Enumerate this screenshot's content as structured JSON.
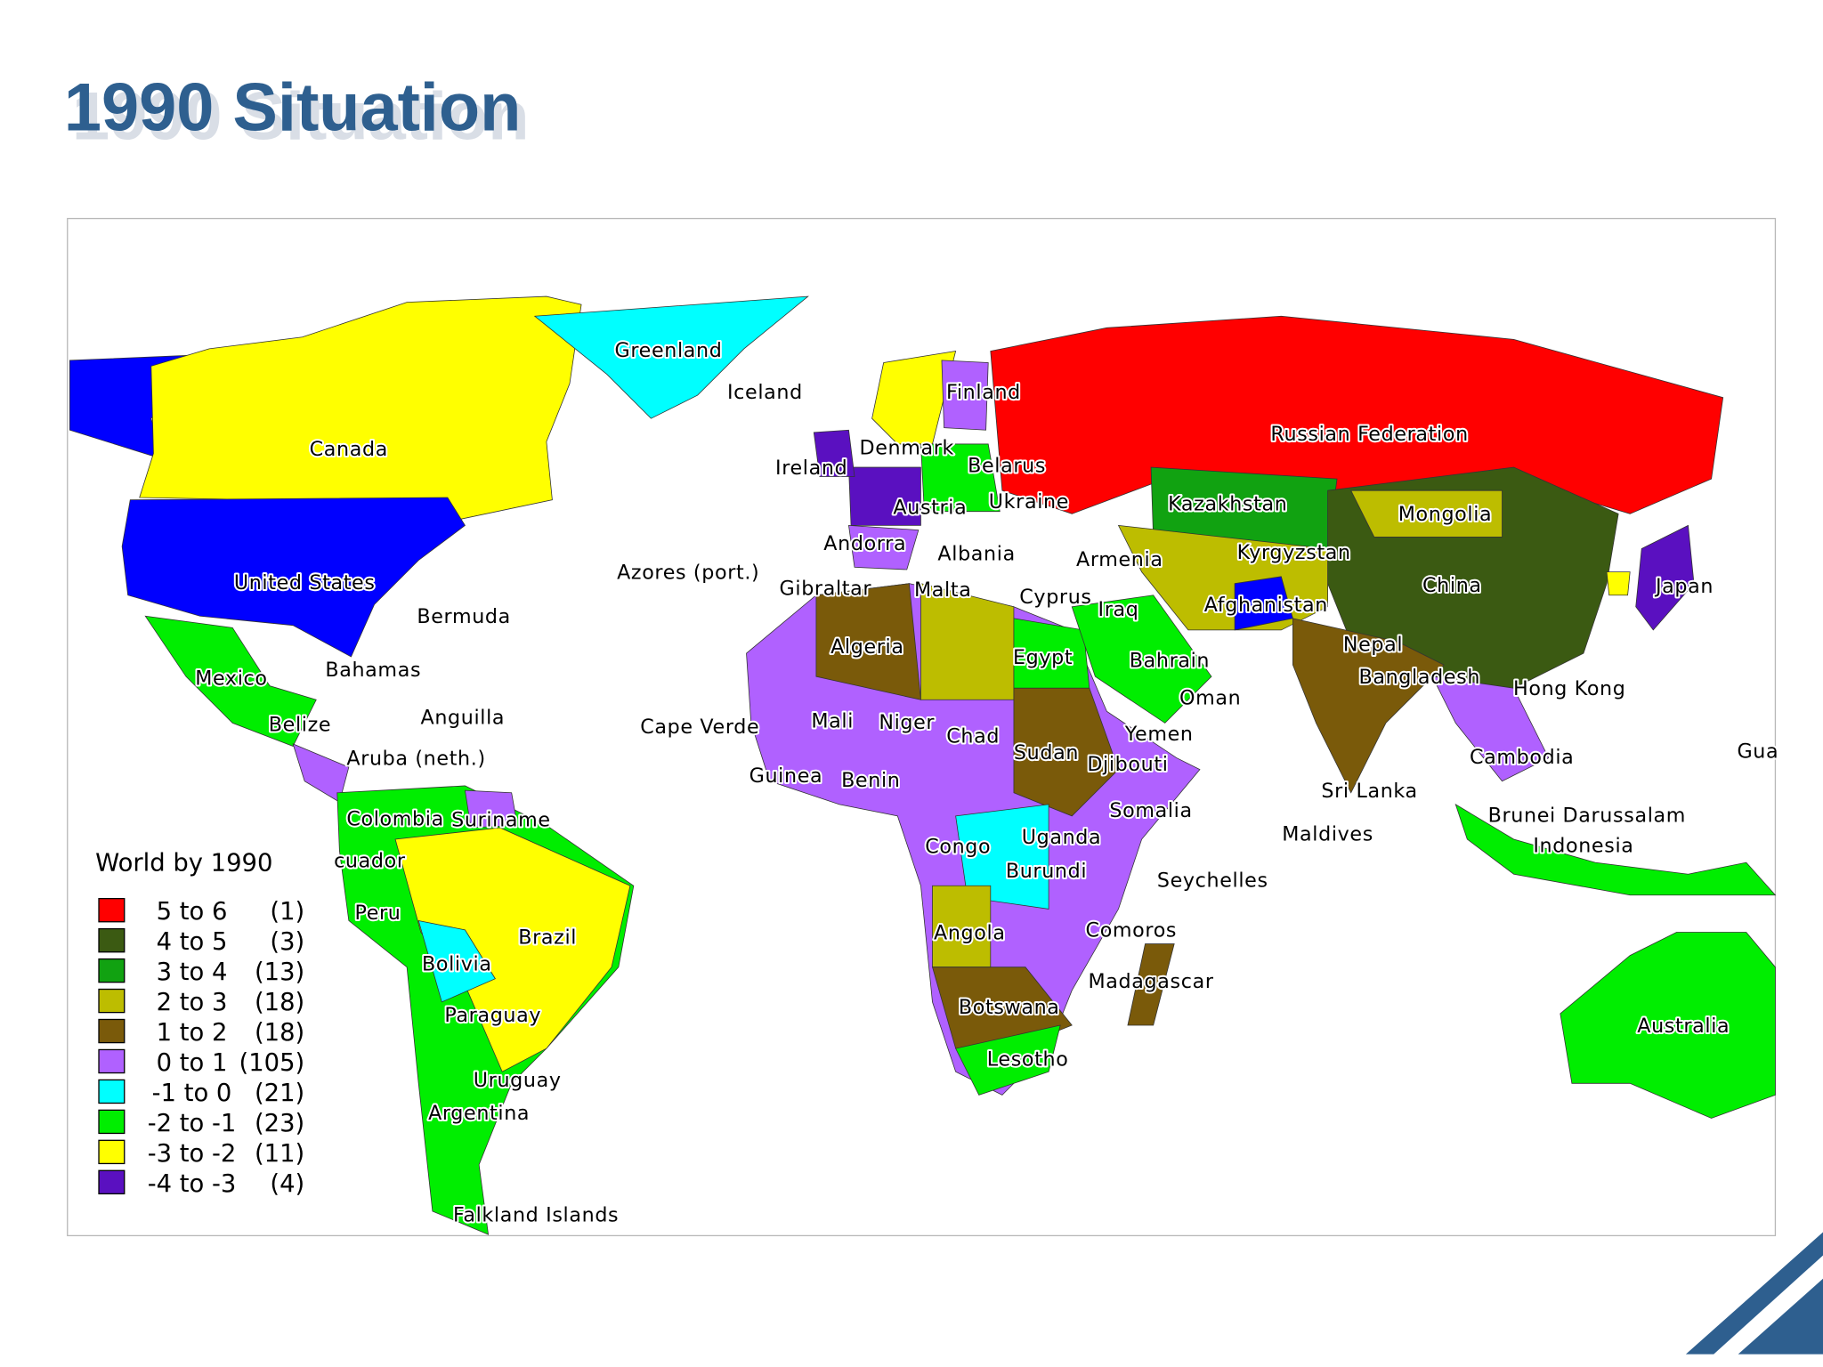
{
  "title": "1990 Situation",
  "legend": {
    "title": "World by 1990",
    "items": [
      {
        "label": "5 to 6",
        "count": "(1)",
        "color": "#ff0000"
      },
      {
        "label": "4 to 5",
        "count": "(3)",
        "color": "#3b5a12"
      },
      {
        "label": "3 to 4",
        "count": "(13)",
        "color": "#11a211"
      },
      {
        "label": "2 to 3",
        "count": "(18)",
        "color": "#bdbd00"
      },
      {
        "label": "1 to 2",
        "count": "(18)",
        "color": "#7a5a0a"
      },
      {
        "label": "0 to 1",
        "count": "(105)",
        "color": "#b061ff"
      },
      {
        "label": "-1 to 0",
        "count": "(21)",
        "color": "#00ffff"
      },
      {
        "label": "-2 to -1",
        "count": "(23)",
        "color": "#00ee00"
      },
      {
        "label": "-3 to -2",
        "count": "(11)",
        "color": "#ffff00"
      },
      {
        "label": "-4 to -3",
        "count": "(4)",
        "color": "#5a10c0"
      }
    ]
  },
  "labels": [
    "Greenland",
    "Iceland",
    "Finland",
    "Canada",
    "Russian Federation",
    "Denmark",
    "Ireland",
    "Belarus",
    "Austria",
    "Ukraine",
    "Kazakhstan",
    "Mongolia",
    "Andorra",
    "Albania",
    "Armenia",
    "Kyrgyzstan",
    "Azores (port.)",
    "United States",
    "Gibraltar",
    "Malta",
    "Cyprus",
    "Iraq",
    "Afghanistan",
    "China",
    "Japan",
    "Bermuda",
    "Algeria",
    "Egypt",
    "Bahrain",
    "Nepal",
    "Mexico",
    "Bahamas",
    "Bangladesh",
    "Hong Kong",
    "Oman",
    "Anguilla",
    "Belize",
    "Cape Verde",
    "Mali",
    "Niger",
    "Chad",
    "Yemen",
    "Sudan",
    "Djibouti",
    "Cambodia",
    "Gua",
    "Aruba (neth.)",
    "Guinea",
    "Benin",
    "Sri Lanka",
    "Somalia",
    "Colombia",
    "Suriname",
    "Brunei Darussalam",
    "Maldives",
    "Uganda",
    "Congo",
    "Indonesia",
    "cuador",
    "Burundi",
    "Seychelles",
    "Peru",
    "Angola",
    "Comoros",
    "Brazil",
    "Bolivia",
    "Madagascar",
    "Botswana",
    "Paraguay",
    "Australia",
    "Lesotho",
    "Uruguay",
    "Argentina",
    "Falkland Islands"
  ]
}
